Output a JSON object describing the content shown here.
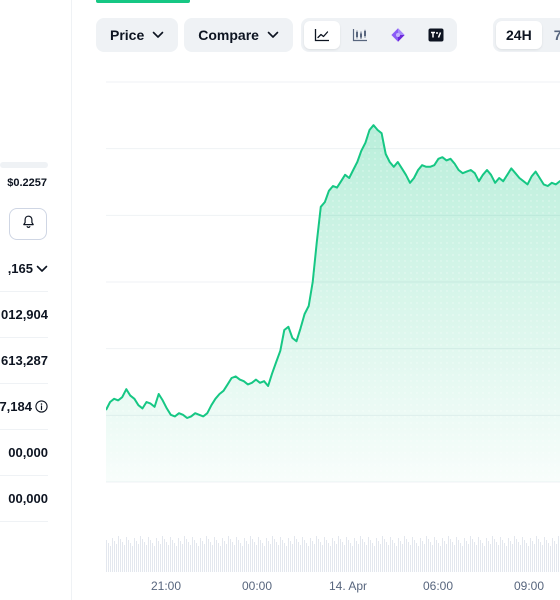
{
  "left_panel": {
    "range_high": "$0.2257",
    "alert_icon": "bell-icon",
    "stats": [
      {
        "value": ",165",
        "has_dropdown": true
      },
      {
        "value": "012,904"
      },
      {
        "value": "613,287"
      },
      {
        "value": "7,184",
        "has_info": true
      },
      {
        "value": "00,000"
      },
      {
        "value": "00,000"
      }
    ]
  },
  "toolbar": {
    "price_label": "Price",
    "compare_label": "Compare",
    "view_icons": [
      "line-chart-icon",
      "candlestick-chart-icon",
      "gem-icon",
      "tradingview-icon"
    ],
    "active_view": "line-chart-icon",
    "ranges": [
      "24H",
      "7"
    ],
    "active_range": "24H"
  },
  "colors": {
    "line": "#16c784",
    "fill": "#16c784",
    "grid": "#eff2f5",
    "control_bg": "#eff2f5",
    "text_secondary": "#58667e"
  },
  "chart_data": {
    "type": "area",
    "x_ticks": [
      "21:00",
      "00:00",
      "14. Apr",
      "06:00",
      "09:00"
    ],
    "series": [
      {
        "values": [
          0.45,
          0.5,
          0.52,
          0.51,
          0.53,
          0.58,
          0.54,
          0.52,
          0.48,
          0.46,
          0.5,
          0.49,
          0.47,
          0.55,
          0.51,
          0.46,
          0.42,
          0.41,
          0.43,
          0.42,
          0.4,
          0.41,
          0.43,
          0.42,
          0.41,
          0.43,
          0.48,
          0.52,
          0.55,
          0.57,
          0.61,
          0.65,
          0.66,
          0.64,
          0.63,
          0.61,
          0.62,
          0.64,
          0.62,
          0.63,
          0.6,
          0.68,
          0.75,
          0.82,
          0.95,
          0.97,
          0.9,
          0.88,
          0.96,
          1.05,
          1.1,
          1.25,
          1.5,
          1.72,
          1.75,
          1.82,
          1.85,
          1.84,
          1.88,
          1.92,
          1.9,
          1.95,
          2.0,
          2.07,
          2.12,
          2.2,
          2.23,
          2.2,
          2.18,
          2.05,
          2.0,
          1.97,
          2.0,
          1.96,
          1.92,
          1.87,
          1.9,
          1.95,
          1.98,
          1.97,
          1.97,
          1.98,
          2.02,
          2.03,
          2.01,
          2.02,
          1.99,
          1.95,
          1.93,
          1.94,
          1.95,
          1.93,
          1.88,
          1.92,
          1.95,
          1.92,
          1.87,
          1.9,
          1.88,
          1.92,
          1.96,
          1.93,
          1.9,
          1.88,
          1.86,
          1.91,
          1.94,
          1.9,
          1.86,
          1.85,
          1.87,
          1.86,
          1.88,
          1.89
        ]
      }
    ],
    "ylim": [
      0,
      2.5
    ],
    "grid": true,
    "legend": "none"
  }
}
